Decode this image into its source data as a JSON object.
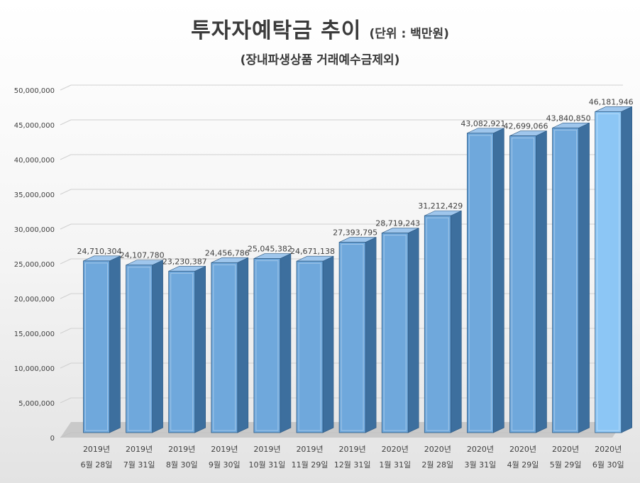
{
  "chart_data": {
    "type": "bar",
    "title": "투자자예탁금 추이",
    "unit": "(단위 : 백만원)",
    "subtitle": "(장내파생상품 거래예수금제외)",
    "categories": [
      [
        "2019년",
        "6월 28일"
      ],
      [
        "2019년",
        "7월 31일"
      ],
      [
        "2019년",
        "8월 30일"
      ],
      [
        "2019년",
        "9월 30일"
      ],
      [
        "2019년",
        "10월 31일"
      ],
      [
        "2019년",
        "11월 29일"
      ],
      [
        "2019년",
        "12월 31일"
      ],
      [
        "2020년",
        "1월 31일"
      ],
      [
        "2020년",
        "2월 28일"
      ],
      [
        "2020년",
        "3월 31일"
      ],
      [
        "2020년",
        "4월 29일"
      ],
      [
        "2020년",
        "5월 29일"
      ],
      [
        "2020년",
        "6월 30일"
      ]
    ],
    "values": [
      24710304,
      24107780,
      23230387,
      24456786,
      25045382,
      24671138,
      27393795,
      28719243,
      31212429,
      43082921,
      42699066,
      43840850,
      46181946
    ],
    "value_labels": [
      "24,710,304",
      "24,107,780",
      "23,230,387",
      "24,456,786",
      "25,045,382",
      "24,671,138",
      "27,393,795",
      "28,719,243",
      "31,212,429",
      "43,082,921",
      "42,699,066",
      "43,840,850",
      "46,181,946"
    ],
    "ylim": [
      0,
      50000000
    ],
    "yticks": [
      0,
      5000000,
      10000000,
      15000000,
      20000000,
      25000000,
      30000000,
      35000000,
      40000000,
      45000000,
      50000000
    ],
    "ytick_labels": [
      "0",
      "5,000,000",
      "10,000,000",
      "15,000,000",
      "20,000,000",
      "25,000,000",
      "30,000,000",
      "35,000,000",
      "40,000,000",
      "45,000,000",
      "50,000,000"
    ],
    "grid": true,
    "style": "3d-column",
    "colors": {
      "bar_front": "#6fa8dc",
      "bar_side": "#3d6f9e",
      "bar_top": "#9fc6ec",
      "bar_front_last": "#8cc6f5",
      "floor": "#bfbfbf",
      "text": "#404040"
    }
  }
}
